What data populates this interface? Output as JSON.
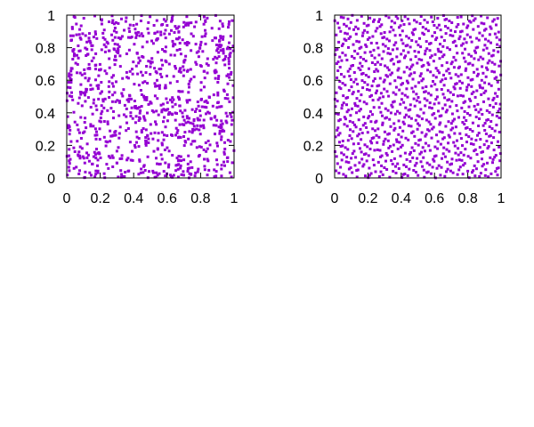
{
  "chart_data": [
    {
      "type": "scatter",
      "xlim": [
        0,
        1
      ],
      "ylim": [
        0,
        1
      ],
      "xticks": [
        "0",
        "0.2",
        "0.4",
        "0.6",
        "0.8",
        "1"
      ],
      "yticks": [
        "0",
        "0.2",
        "0.4",
        "0.6",
        "0.8",
        "1"
      ],
      "grid": false,
      "point_color": "#9400d3",
      "points": 1000,
      "sampling": "pseudo-random uniform"
    },
    {
      "type": "scatter",
      "xlim": [
        0,
        1
      ],
      "ylim": [
        0,
        1
      ],
      "xticks": [
        "0",
        "0.2",
        "0.4",
        "0.6",
        "0.8",
        "1"
      ],
      "yticks": [
        "0",
        "0.2",
        "0.4",
        "0.6",
        "0.8",
        "1"
      ],
      "grid": false,
      "point_color": "#9400d3",
      "points": 1000,
      "sampling": "quasi-random (Halton 2,3)"
    }
  ]
}
